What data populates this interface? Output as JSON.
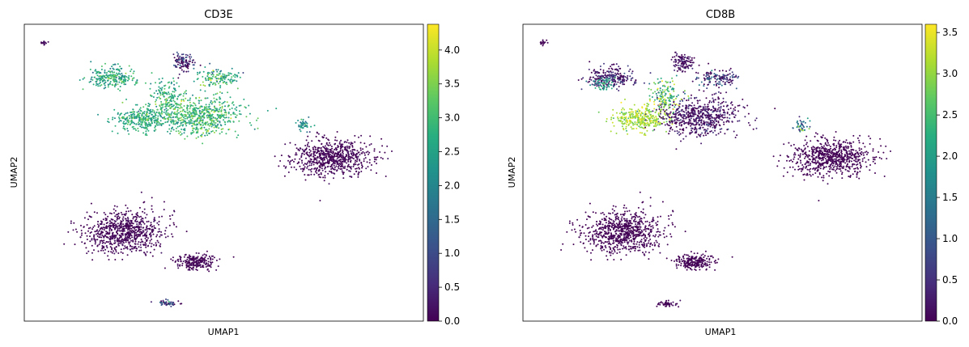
{
  "chart_data": [
    {
      "type": "scatter",
      "title": "CD3E",
      "xlabel": "UMAP1",
      "ylabel": "UMAP2",
      "colormap": "viridis",
      "colorbar": {
        "min": 0.0,
        "max": 4.38,
        "ticks": [
          "0.0",
          "0.5",
          "1.0",
          "1.5",
          "2.0",
          "2.5",
          "3.0",
          "3.5",
          "4.0"
        ]
      },
      "grid": false,
      "clusters": [
        {
          "cx": 0.22,
          "cy": 0.82,
          "rx": 0.06,
          "ry": 0.035,
          "n": 240,
          "value": 2.6,
          "spread": 0.5
        },
        {
          "cx": 0.3,
          "cy": 0.68,
          "rx": 0.07,
          "ry": 0.04,
          "n": 330,
          "value": 2.7,
          "spread": 0.4
        },
        {
          "cx": 0.44,
          "cy": 0.69,
          "rx": 0.1,
          "ry": 0.065,
          "n": 620,
          "value": 2.9,
          "spread": 0.5
        },
        {
          "cx": 0.4,
          "cy": 0.87,
          "rx": 0.025,
          "ry": 0.03,
          "n": 110,
          "value": 0.3,
          "spread": 0.6
        },
        {
          "cx": 0.49,
          "cy": 0.82,
          "rx": 0.05,
          "ry": 0.03,
          "n": 140,
          "value": 2.7,
          "spread": 0.6
        },
        {
          "cx": 0.36,
          "cy": 0.76,
          "rx": 0.04,
          "ry": 0.05,
          "n": 140,
          "value": 2.8,
          "spread": 0.5
        },
        {
          "cx": 0.7,
          "cy": 0.66,
          "rx": 0.02,
          "ry": 0.02,
          "n": 45,
          "value": 2.2,
          "spread": 0.5
        },
        {
          "cx": 0.77,
          "cy": 0.55,
          "rx": 0.1,
          "ry": 0.06,
          "n": 700,
          "value": 0.05,
          "spread": 0.1
        },
        {
          "cx": 0.25,
          "cy": 0.3,
          "rx": 0.1,
          "ry": 0.07,
          "n": 760,
          "value": 0.05,
          "spread": 0.1
        },
        {
          "cx": 0.43,
          "cy": 0.2,
          "rx": 0.05,
          "ry": 0.025,
          "n": 220,
          "value": 0.05,
          "spread": 0.1
        },
        {
          "cx": 0.36,
          "cy": 0.06,
          "rx": 0.03,
          "ry": 0.01,
          "n": 50,
          "value": 0.9,
          "spread": 0.8
        },
        {
          "cx": 0.05,
          "cy": 0.94,
          "rx": 0.01,
          "ry": 0.01,
          "n": 14,
          "value": 0.05,
          "spread": 0.1
        }
      ]
    },
    {
      "type": "scatter",
      "title": "CD8B",
      "xlabel": "UMAP1",
      "ylabel": "UMAP2",
      "colormap": "viridis",
      "colorbar": {
        "min": 0.0,
        "max": 3.6,
        "ticks": [
          "0.0",
          "0.5",
          "1.0",
          "1.5",
          "2.0",
          "2.5",
          "3.0",
          "3.5"
        ]
      },
      "grid": false,
      "clusters": [
        {
          "cx": 0.22,
          "cy": 0.82,
          "rx": 0.06,
          "ry": 0.035,
          "n": 240,
          "value": 0.2,
          "spread": 0.4
        },
        {
          "cx": 0.2,
          "cy": 0.8,
          "rx": 0.025,
          "ry": 0.02,
          "n": 60,
          "value": 2.0,
          "spread": 0.4
        },
        {
          "cx": 0.3,
          "cy": 0.68,
          "rx": 0.07,
          "ry": 0.04,
          "n": 330,
          "value": 3.1,
          "spread": 0.3
        },
        {
          "cx": 0.44,
          "cy": 0.69,
          "rx": 0.1,
          "ry": 0.065,
          "n": 620,
          "value": 0.15,
          "spread": 0.3
        },
        {
          "cx": 0.4,
          "cy": 0.87,
          "rx": 0.025,
          "ry": 0.03,
          "n": 110,
          "value": 0.1,
          "spread": 0.2
        },
        {
          "cx": 0.49,
          "cy": 0.82,
          "rx": 0.05,
          "ry": 0.03,
          "n": 140,
          "value": 0.5,
          "spread": 0.6
        },
        {
          "cx": 0.36,
          "cy": 0.76,
          "rx": 0.04,
          "ry": 0.05,
          "n": 140,
          "value": 2.6,
          "spread": 0.7
        },
        {
          "cx": 0.7,
          "cy": 0.66,
          "rx": 0.02,
          "ry": 0.02,
          "n": 45,
          "value": 1.5,
          "spread": 0.8
        },
        {
          "cx": 0.77,
          "cy": 0.55,
          "rx": 0.1,
          "ry": 0.06,
          "n": 700,
          "value": 0.02,
          "spread": 0.05
        },
        {
          "cx": 0.25,
          "cy": 0.3,
          "rx": 0.1,
          "ry": 0.07,
          "n": 760,
          "value": 0.02,
          "spread": 0.05
        },
        {
          "cx": 0.43,
          "cy": 0.2,
          "rx": 0.05,
          "ry": 0.025,
          "n": 220,
          "value": 0.02,
          "spread": 0.05
        },
        {
          "cx": 0.36,
          "cy": 0.06,
          "rx": 0.03,
          "ry": 0.01,
          "n": 50,
          "value": 0.05,
          "spread": 0.1
        },
        {
          "cx": 0.05,
          "cy": 0.94,
          "rx": 0.01,
          "ry": 0.01,
          "n": 14,
          "value": 0.02,
          "spread": 0.05
        }
      ]
    }
  ]
}
